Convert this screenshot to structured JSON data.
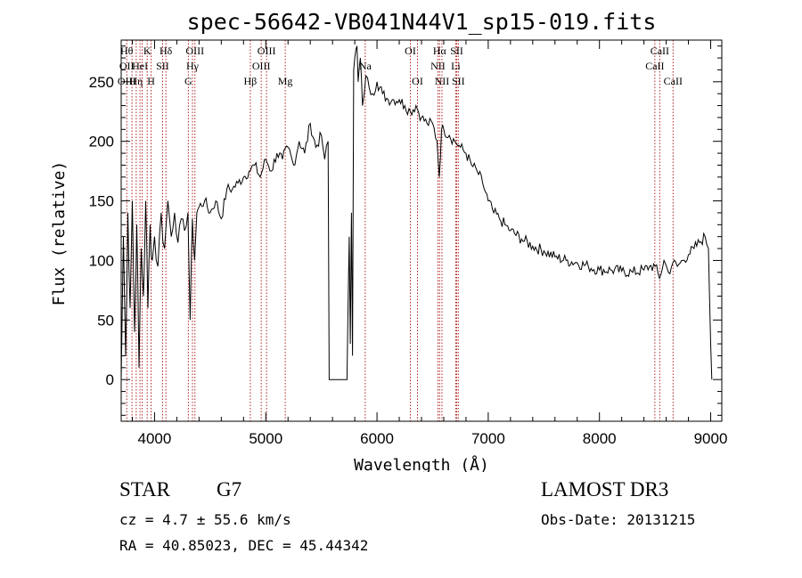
{
  "chart_data": {
    "type": "line",
    "title": "spec-56642-VB041N44V1_sp15-019.fits",
    "xlabel": "Wavelength (Å)",
    "ylabel": "Flux (relative)",
    "xlim": [
      3700,
      9100
    ],
    "ylim": [
      -35,
      285
    ],
    "xticks": [
      4000,
      5000,
      6000,
      7000,
      8000,
      9000
    ],
    "xtick_labels": [
      "4000",
      "5000",
      "6000",
      "7000",
      "8000",
      "9000"
    ],
    "yticks": [
      0,
      50,
      100,
      150,
      200,
      250
    ],
    "ytick_labels": [
      "0",
      "50",
      "100",
      "150",
      "200",
      "250"
    ],
    "series": [
      {
        "name": "flux",
        "x": [
          3700,
          3720,
          3740,
          3760,
          3780,
          3800,
          3820,
          3840,
          3860,
          3880,
          3900,
          3920,
          3940,
          3960,
          3980,
          4000,
          4030,
          4060,
          4090,
          4120,
          4150,
          4180,
          4210,
          4240,
          4270,
          4300,
          4320,
          4340,
          4360,
          4380,
          4400,
          4450,
          4500,
          4550,
          4600,
          4650,
          4700,
          4750,
          4800,
          4850,
          4900,
          4950,
          5000,
          5050,
          5100,
          5150,
          5200,
          5250,
          5300,
          5350,
          5400,
          5450,
          5500,
          5530,
          5560,
          5570,
          5600,
          5650,
          5700,
          5730,
          5750,
          5760,
          5770,
          5780,
          5790,
          5800,
          5820,
          5830,
          5850,
          5870,
          5900,
          5930,
          5960,
          6000,
          6050,
          6100,
          6150,
          6200,
          6250,
          6300,
          6350,
          6400,
          6450,
          6500,
          6540,
          6560,
          6580,
          6600,
          6650,
          6700,
          6750,
          6800,
          6850,
          6900,
          6950,
          7000,
          7050,
          7100,
          7150,
          7200,
          7300,
          7400,
          7500,
          7600,
          7700,
          7800,
          7900,
          8000,
          8100,
          8200,
          8300,
          8400,
          8450,
          8500,
          8540,
          8580,
          8620,
          8660,
          8700,
          8750,
          8800,
          8850,
          8900,
          8950,
          8980,
          9000,
          9010
        ],
        "y": [
          0,
          120,
          20,
          140,
          60,
          150,
          40,
          130,
          10,
          110,
          70,
          150,
          60,
          130,
          100,
          120,
          95,
          140,
          110,
          150,
          120,
          140,
          115,
          135,
          125,
          140,
          50,
          135,
          100,
          140,
          145,
          150,
          140,
          150,
          135,
          160,
          160,
          165,
          170,
          175,
          180,
          170,
          185,
          175,
          190,
          185,
          195,
          180,
          200,
          190,
          215,
          195,
          205,
          185,
          200,
          0,
          0,
          0,
          0,
          0,
          120,
          30,
          140,
          20,
          260,
          270,
          280,
          250,
          270,
          230,
          255,
          245,
          240,
          250,
          240,
          235,
          235,
          235,
          230,
          225,
          230,
          220,
          215,
          215,
          200,
          170,
          210,
          210,
          205,
          200,
          195,
          190,
          180,
          175,
          165,
          150,
          140,
          135,
          130,
          125,
          118,
          112,
          108,
          103,
          100,
          98,
          95,
          92,
          92,
          91,
          90,
          92,
          95,
          95,
          85,
          100,
          90,
          98,
          95,
          100,
          105,
          110,
          115,
          120,
          110,
          30,
          0
        ]
      }
    ],
    "lines": [
      {
        "x": 3750,
        "labels": [
          {
            "row": 0,
            "text": "Hθ"
          },
          {
            "row": 1,
            "text": "OII"
          },
          {
            "row": 2,
            "text": "OIII"
          }
        ]
      },
      {
        "x": 3797,
        "labels": []
      },
      {
        "x": 3835,
        "labels": [
          {
            "row": 2,
            "text": "Hη"
          }
        ]
      },
      {
        "x": 3869,
        "labels": [
          {
            "row": 1,
            "text": "HeI"
          }
        ]
      },
      {
        "x": 3889,
        "labels": []
      },
      {
        "x": 3934,
        "labels": [
          {
            "row": 0,
            "text": "K"
          }
        ]
      },
      {
        "x": 3969,
        "labels": [
          {
            "row": 2,
            "text": "H"
          }
        ]
      },
      {
        "x": 4072,
        "labels": [
          {
            "row": 1,
            "text": "SII"
          }
        ]
      },
      {
        "x": 4102,
        "labels": [
          {
            "row": 0,
            "text": "Hδ"
          }
        ]
      },
      {
        "x": 4304,
        "labels": [
          {
            "row": 2,
            "text": "G"
          }
        ]
      },
      {
        "x": 4341,
        "labels": [
          {
            "row": 1,
            "text": "Hγ"
          }
        ]
      },
      {
        "x": 4363,
        "labels": [
          {
            "row": 0,
            "text": "OIII"
          }
        ]
      },
      {
        "x": 4861,
        "labels": [
          {
            "row": 2,
            "text": "Hβ"
          }
        ]
      },
      {
        "x": 4959,
        "labels": [
          {
            "row": 1,
            "text": "OIII"
          }
        ]
      },
      {
        "x": 5007,
        "labels": [
          {
            "row": 0,
            "text": "OIII"
          }
        ]
      },
      {
        "x": 5175,
        "labels": [
          {
            "row": 2,
            "text": "Mg"
          }
        ]
      },
      {
        "x": 5894,
        "labels": [
          {
            "row": 1,
            "text": "Na"
          }
        ]
      },
      {
        "x": 6300,
        "labels": [
          {
            "row": 0,
            "text": "OI"
          }
        ]
      },
      {
        "x": 6364,
        "labels": [
          {
            "row": 2,
            "text": "OI"
          }
        ]
      },
      {
        "x": 6548,
        "labels": [
          {
            "row": 1,
            "text": "NII"
          }
        ]
      },
      {
        "x": 6563,
        "labels": [
          {
            "row": 0,
            "text": "Hα"
          }
        ]
      },
      {
        "x": 6584,
        "labels": [
          {
            "row": 2,
            "text": "NII"
          }
        ]
      },
      {
        "x": 6708,
        "labels": [
          {
            "row": 1,
            "text": "Li"
          }
        ]
      },
      {
        "x": 6717,
        "labels": [
          {
            "row": 0,
            "text": "SII"
          }
        ]
      },
      {
        "x": 6731,
        "labels": [
          {
            "row": 2,
            "text": "SII"
          }
        ]
      },
      {
        "x": 8498,
        "labels": [
          {
            "row": 1,
            "text": "CaII"
          }
        ]
      },
      {
        "x": 8542,
        "labels": [
          {
            "row": 0,
            "text": "CaII"
          }
        ]
      },
      {
        "x": 8662,
        "labels": [
          {
            "row": 2,
            "text": "CaII"
          }
        ]
      }
    ]
  },
  "info": {
    "classification": "STAR",
    "subclass": "G7",
    "redshift": "cz = 4.7 ± 55.6 km/s",
    "coordinates": "RA =  40.85023, DEC =  45.44342",
    "survey": "LAMOST DR3",
    "obs_date": "Obs-Date: 20131215"
  },
  "colors": {
    "axis": "#000000",
    "spectrum": "#000000",
    "line_marker": "#b22222"
  }
}
